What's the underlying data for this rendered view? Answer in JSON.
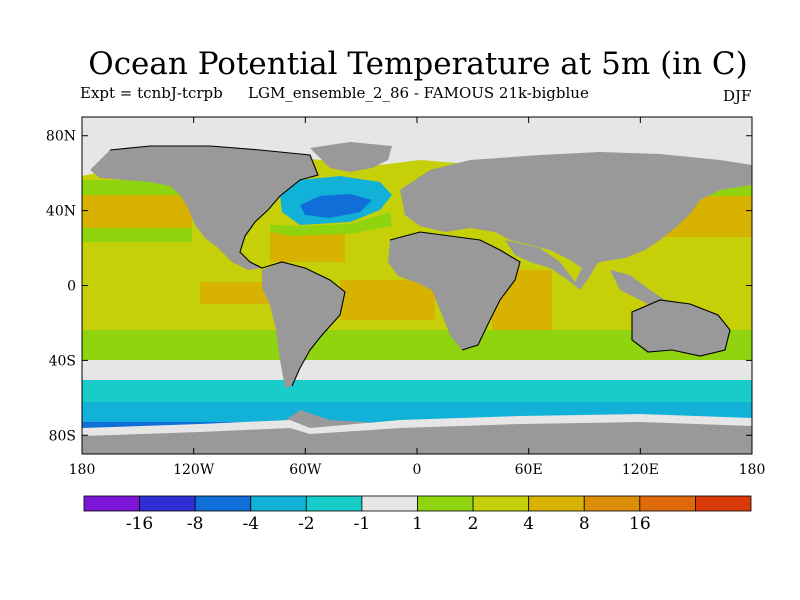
{
  "title": "Ocean Potential Temperature at 5m (in C)",
  "experiment": "Expt = tcnbJ-tcrpb",
  "run_name": "LGM_ensemble_2_86 - FAMOUS 21k-bigblue",
  "season": "DJF",
  "map": {
    "projection": "cylindrical equidistant",
    "lon_range": [
      -180,
      180
    ],
    "lat_range": [
      -90,
      90
    ],
    "land_color": "#999999",
    "sea_ice_color": "#e6e6e6",
    "coastline_color": "#000000"
  },
  "y_ticks": [
    {
      "lat": 80,
      "label": "80N"
    },
    {
      "lat": 40,
      "label": "40N"
    },
    {
      "lat": 0,
      "label": "0"
    },
    {
      "lat": -40,
      "label": "40S"
    },
    {
      "lat": -80,
      "label": "80S"
    }
  ],
  "x_ticks": [
    {
      "lon": -180,
      "label": "180"
    },
    {
      "lon": -120,
      "label": "120W"
    },
    {
      "lon": -60,
      "label": "60W"
    },
    {
      "lon": 0,
      "label": "0"
    },
    {
      "lon": 60,
      "label": "60E"
    },
    {
      "lon": 120,
      "label": "120E"
    },
    {
      "lon": 180,
      "label": "180"
    }
  ],
  "colorbar": {
    "colors": [
      "#7b16d6",
      "#2f2fd8",
      "#0f6ed8",
      "#12b1d8",
      "#18cdc9",
      "#e6e6e6",
      "#8fd40e",
      "#c6d008",
      "#d7b200",
      "#dc8e06",
      "#de6a0b",
      "#d93a08"
    ],
    "boundary_labels": [
      {
        "index": 1,
        "label": "-16"
      },
      {
        "index": 2,
        "label": "-8"
      },
      {
        "index": 3,
        "label": "-4"
      },
      {
        "index": 4,
        "label": "-2"
      },
      {
        "index": 5,
        "label": "-1"
      },
      {
        "index": 6,
        "label": "1"
      },
      {
        "index": 7,
        "label": "2"
      },
      {
        "index": 8,
        "label": "4"
      },
      {
        "index": 9,
        "label": "8"
      },
      {
        "index": 10,
        "label": "16"
      }
    ]
  }
}
